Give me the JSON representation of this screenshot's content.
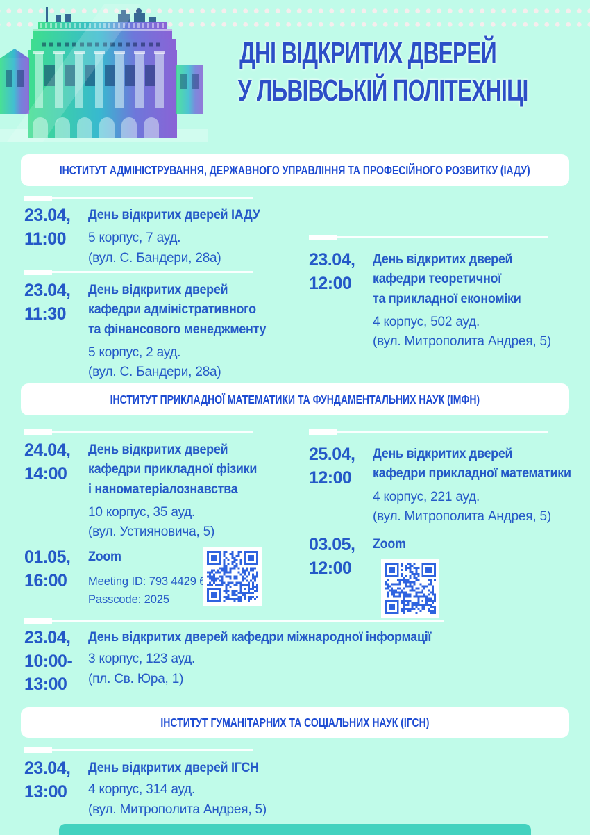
{
  "page": {
    "background_color": "#c0fbe9",
    "text_blue": "#2459c7",
    "heading_blue": "#1d4bd2",
    "title_blue": "#2c4fc7",
    "qr_blue": "#2f63df",
    "footer_bar_color": "#43d2bf",
    "dot_color": "#f6eded"
  },
  "header": {
    "title_line1": "ДНІ ВІДКРИТИХ ДВЕРЕЙ",
    "title_line2": "У ЛЬВІВСЬКІЙ ПОЛІТЕХНІЦІ"
  },
  "sections": [
    {
      "heading": "ІНСТИТУТ АДМІНІСТРУВАННЯ, ДЕРЖАВНОГО УПРАВЛІННЯ ТА ПРОФЕСІЙНОГО РОЗВИТКУ (ІАДУ)",
      "events": [
        {
          "date": "23.04,",
          "time": "11:00",
          "title_lines": [
            "День відкритих дверей ІАДУ"
          ],
          "venue": "5 корпус, 7 ауд.",
          "address": "(вул. С. Бандери, 28а)"
        },
        {
          "date": "23.04,",
          "time": "11:30",
          "title_lines": [
            "День відкритих дверей",
            "кафедри адміністративного",
            "та фінансового менеджменту"
          ],
          "venue": "5 корпус, 2 ауд.",
          "address": "(вул. С. Бандери, 28а)"
        },
        {
          "date": "23.04,",
          "time": "12:00",
          "title_lines": [
            "День відкритих дверей",
            "кафедри теоретичної",
            "та прикладної економіки"
          ],
          "venue": "4 корпус, 502 ауд.",
          "address": "(вул. Митрополита Андрея, 5)"
        }
      ]
    },
    {
      "heading": "ІНСТИТУТ ПРИКЛАДНОЇ МАТЕМАТИКИ ТА ФУНДАМЕНТАЛЬНИХ НАУК (ІМФН)",
      "events": [
        {
          "date": "24.04,",
          "time": "14:00",
          "title_lines": [
            "День відкритих дверей",
            "кафедри прикладної фізики",
            "і наноматеріалознавства"
          ],
          "venue": "10 корпус, 35 ауд.",
          "address": "(вул. Устияновича, 5)"
        },
        {
          "date": "25.04,",
          "time": "12:00",
          "title_lines": [
            "День відкритих дверей",
            "кафедри прикладної математики"
          ],
          "venue": "4 корпус, 221 ауд.",
          "address": "(вул. Митрополита Андрея, 5)"
        },
        {
          "date": "01.05,",
          "time": "16:00",
          "title_lines": [
            "Zoom"
          ],
          "meeting_id": "Meeting ID: 793 4429 6665",
          "passcode": "Passcode: 2025"
        },
        {
          "date": "03.05,",
          "time": "12:00",
          "title_lines": [
            "Zoom"
          ]
        },
        {
          "date": "23.04,",
          "time": "10:00-",
          "time2": "13:00",
          "title_lines": [
            "День відкритих дверей кафедри міжнародної інформації"
          ],
          "venue": "3 корпус, 123 ауд.",
          "address": "(пл. Св. Юра, 1)"
        }
      ]
    },
    {
      "heading": "ІНСТИТУТ ГУМАНІТАРНИХ ТА СОЦІАЛЬНИХ НАУК (ІГСН)",
      "events": [
        {
          "date": "23.04,",
          "time": "13:00",
          "title_lines": [
            "День відкритих дверей ІГСН"
          ],
          "venue": "4 корпус, 314 ауд.",
          "address": "(вул. Митрополита Андрея, 5)"
        }
      ]
    }
  ]
}
